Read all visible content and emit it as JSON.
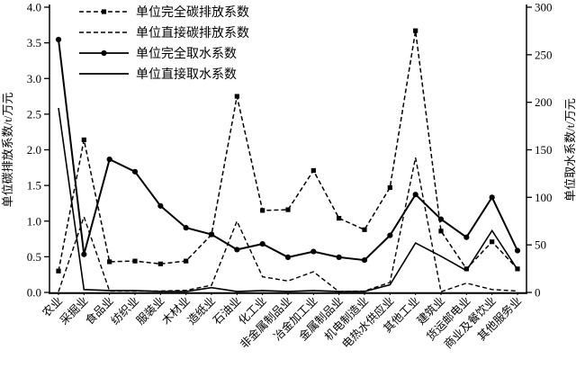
{
  "chart_data": {
    "type": "line",
    "title": "",
    "categories": [
      "农业",
      "采掘业",
      "食品业",
      "纺织业",
      "服装业",
      "木材业",
      "造纸业",
      "石油业",
      "化工业",
      "非金属制品业",
      "冶金加工业",
      "金属制品业",
      "机电制造业",
      "电热水供应业",
      "其他工业",
      "建筑业",
      "货运邮电业",
      "商业及餐饮业",
      "其他服务业"
    ],
    "left_axis": {
      "label": "单位碳排放系数/t/万元",
      "min": 0.0,
      "max": 4.0,
      "tick_labels": [
        "0.0",
        "0.5",
        "1.0",
        "1.5",
        "2.0",
        "2.5",
        "3.0",
        "3.5",
        "4.0"
      ]
    },
    "right_axis": {
      "label": "单位取水系数/t/万元",
      "min": 0,
      "max": 300,
      "tick_labels": [
        "0",
        "50",
        "100",
        "150",
        "200",
        "250",
        "300"
      ]
    },
    "series": [
      {
        "name": "单位完全碳排放系数",
        "axis": "left",
        "line": "dashed",
        "marker": "square",
        "values": [
          0.3,
          2.14,
          0.43,
          0.44,
          0.4,
          0.44,
          0.81,
          2.75,
          1.15,
          1.16,
          1.71,
          1.04,
          0.88,
          1.47,
          3.67,
          0.86,
          0.33,
          0.71,
          0.33
        ]
      },
      {
        "name": "单位直接碳排放系数",
        "axis": "left",
        "line": "dashed",
        "marker": "none",
        "values": [
          0.01,
          1.06,
          0.02,
          0.02,
          0.02,
          0.03,
          0.1,
          1.0,
          0.22,
          0.16,
          0.29,
          0.01,
          0.02,
          0.14,
          1.89,
          0.01,
          0.13,
          0.04,
          0.02
        ]
      },
      {
        "name": "单位完全取水系数",
        "axis": "right",
        "line": "solid",
        "marker": "circle",
        "values": [
          266,
          40,
          140,
          127,
          91,
          68,
          61,
          45,
          51,
          37,
          43,
          37,
          34,
          60,
          103,
          77,
          58,
          100,
          44
        ]
      },
      {
        "name": "单位直接取水系数",
        "axis": "right",
        "line": "solid",
        "marker": "none",
        "values": [
          194,
          3,
          2,
          2,
          1,
          1,
          5,
          1,
          2,
          1,
          2,
          1,
          1,
          8,
          52,
          38,
          23,
          65,
          24
        ]
      }
    ],
    "legend_position": "top-left-inside",
    "grid": false,
    "colors": {
      "line": "#000000",
      "background": "#ffffff"
    }
  }
}
